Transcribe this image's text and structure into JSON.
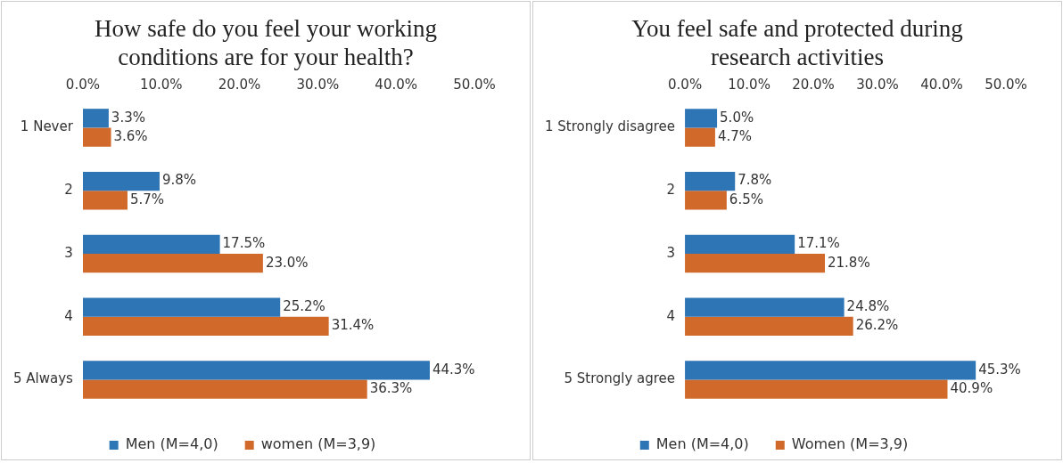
{
  "chart_data": [
    {
      "type": "bar",
      "orientation": "horizontal",
      "title": "How safe do you feel your working conditions are for your health?",
      "categories": [
        "1 Never",
        "2",
        "3",
        "4",
        "5 Always"
      ],
      "xlim": [
        0,
        50
      ],
      "xticks": [
        {
          "value": 0,
          "label": "0.0%"
        },
        {
          "value": 10,
          "label": "10.0%"
        },
        {
          "value": 20,
          "label": "20.0%"
        },
        {
          "value": 30,
          "label": "30.0%"
        },
        {
          "value": 40,
          "label": "40.0%"
        },
        {
          "value": 50,
          "label": "50.0%"
        }
      ],
      "grid": false,
      "legend": "bottom",
      "series": [
        {
          "name": "Men (M=4,0)",
          "color": "#2e75b6",
          "values": [
            3.3,
            9.8,
            17.5,
            25.2,
            44.3
          ],
          "value_labels": [
            "3.3%",
            "9.8%",
            "17.5%",
            "25.2%",
            "44.3%"
          ]
        },
        {
          "name": "women (M=3,9)",
          "color": "#d0692a",
          "values": [
            3.6,
            5.7,
            23.0,
            31.4,
            36.3
          ],
          "value_labels": [
            "3.6%",
            "5.7%",
            "23.0%",
            "31.4%",
            "36.3%"
          ]
        }
      ]
    },
    {
      "type": "bar",
      "orientation": "horizontal",
      "title": "You feel safe and protected during research activities",
      "categories": [
        "1 Strongly disagree",
        "2",
        "3",
        "4",
        "5 Strongly agree"
      ],
      "xlim": [
        0,
        50
      ],
      "xticks": [
        {
          "value": 0,
          "label": "0.0%"
        },
        {
          "value": 10,
          "label": "10.0%"
        },
        {
          "value": 20,
          "label": "20.0%"
        },
        {
          "value": 30,
          "label": "30.0%"
        },
        {
          "value": 40,
          "label": "40.0%"
        },
        {
          "value": 50,
          "label": "50.0%"
        }
      ],
      "grid": false,
      "legend": "bottom",
      "series": [
        {
          "name": "Men (M=4,0)",
          "color": "#2e75b6",
          "values": [
            5.0,
            7.8,
            17.1,
            24.8,
            45.3
          ],
          "value_labels": [
            "5.0%",
            "7.8%",
            "17.1%",
            "24.8%",
            "45.3%"
          ]
        },
        {
          "name": "Women (M=3,9)",
          "color": "#d0692a",
          "values": [
            4.7,
            6.5,
            21.8,
            26.2,
            40.9
          ],
          "value_labels": [
            "4.7%",
            "6.5%",
            "21.8%",
            "26.2%",
            "40.9%"
          ]
        }
      ]
    }
  ]
}
